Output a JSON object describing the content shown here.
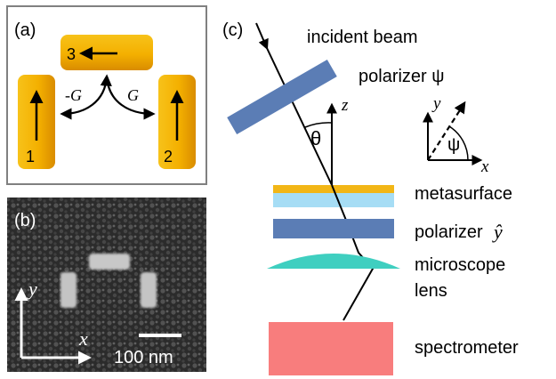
{
  "panel_a": {
    "label": "(a)",
    "rod1": "1",
    "rod2": "2",
    "rod3": "3",
    "coupling_left": "-G",
    "coupling_right": "G",
    "gold": "#F0B000"
  },
  "panel_b": {
    "label": "(b)",
    "axis_y": "y",
    "axis_x": "x",
    "scalebar": "100 nm"
  },
  "panel_c": {
    "label": "(c)",
    "incident_beam": "incident beam",
    "polarizer_psi": "polarizer  ψ",
    "axis_z": "z",
    "theta": "θ",
    "axis_y": "y",
    "axis_x": "x",
    "psi": "ψ",
    "metasurface": "metasurface",
    "polarizer_y_word": "polarizer",
    "polarizer_y_symbol": "ŷ",
    "microscope_line1": "microscope",
    "microscope_line2": "lens",
    "spectrometer": "spectrometer",
    "colors": {
      "polarizer": "#5B7DB5",
      "metasurface_gold": "#F2B616",
      "metasurface_substrate": "#A6DDF5",
      "lens": "#3FCFC0",
      "spectrometer": "#F87D7D"
    }
  }
}
